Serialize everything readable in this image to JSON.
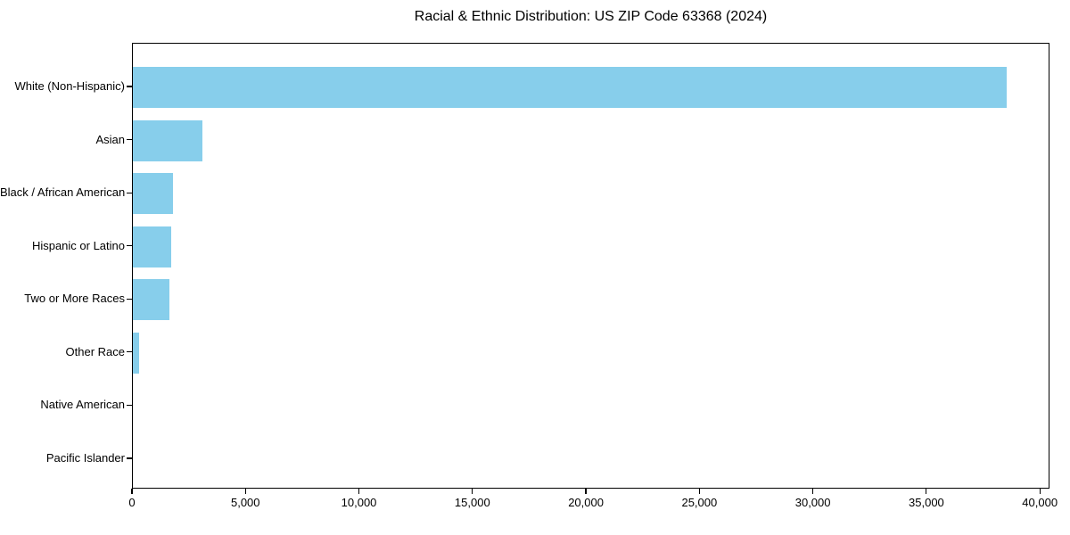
{
  "figure": {
    "background": "#ffffff"
  },
  "chart_data": {
    "type": "bar",
    "orientation": "horizontal",
    "title": "Racial & Ethnic Distribution: US ZIP Code 63368 (2024)",
    "categories": [
      "White (Non-Hispanic)",
      "Asian",
      "Black / African American",
      "Hispanic or Latino",
      "Two or More Races",
      "Other Race",
      "Native American",
      "Pacific Islander"
    ],
    "values": [
      38500,
      3050,
      1750,
      1700,
      1600,
      260,
      0,
      0
    ],
    "bar_color": "#87CEEB",
    "axis_color": "#000000",
    "text_color": "#000000",
    "xlabel": "",
    "ylabel": "",
    "xlim": [
      0,
      40425
    ],
    "xticks": [
      0,
      5000,
      10000,
      15000,
      20000,
      25000,
      30000,
      35000,
      40000
    ],
    "xtick_labels": [
      "0",
      "5,000",
      "10,000",
      "15,000",
      "20,000",
      "25,000",
      "30,000",
      "35,000",
      "40,000"
    ],
    "grid": false,
    "legend": "none"
  }
}
